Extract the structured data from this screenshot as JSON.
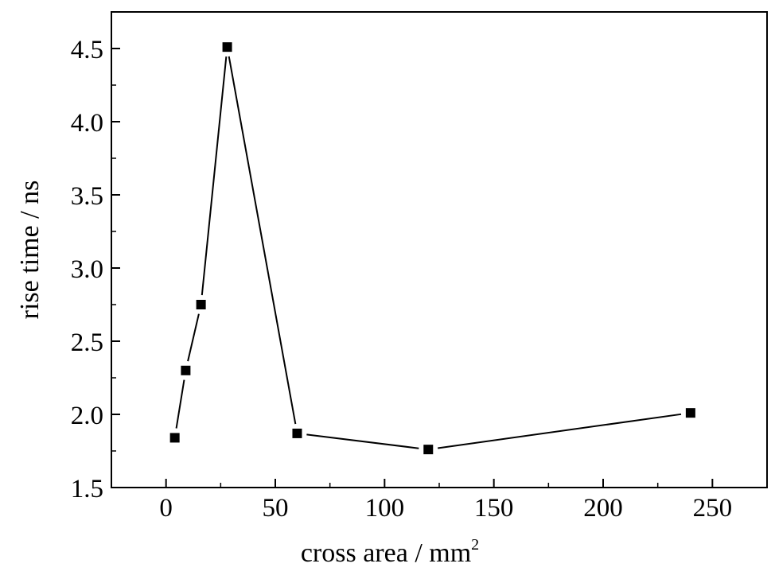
{
  "chart_data": {
    "type": "line",
    "title": "",
    "xlabel": "cross area / mm",
    "xlabel_superscript": "2",
    "ylabel": "rise time / ns",
    "xlim": [
      -25,
      275
    ],
    "ylim": [
      1.5,
      4.75
    ],
    "xticks": [
      0,
      50,
      100,
      150,
      200,
      250
    ],
    "yticks": [
      1.5,
      2.0,
      2.5,
      3.0,
      3.5,
      4.0,
      4.5
    ],
    "xtick_labels": [
      "0",
      "50",
      "100",
      "150",
      "200",
      "250"
    ],
    "ytick_labels": [
      "1.5",
      "2.0",
      "2.5",
      "3.0",
      "3.5",
      "4.0",
      "4.5"
    ],
    "grid": false,
    "legend": "none",
    "marker": "square",
    "color": "#000000",
    "series": [
      {
        "x": [
          4,
          9,
          16,
          28,
          60,
          120,
          240
        ],
        "y": [
          1.84,
          2.3,
          2.75,
          4.51,
          1.87,
          1.76,
          2.01
        ]
      }
    ]
  }
}
